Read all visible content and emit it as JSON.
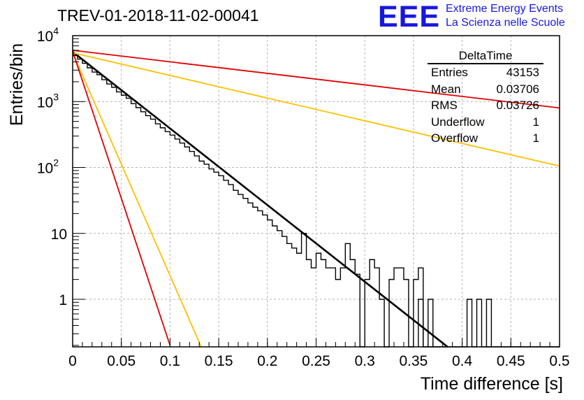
{
  "title": "TREV-01-2018-11-02-00041",
  "logo": {
    "mark": "EEE",
    "line1": "Extreme Energy Events",
    "line2": "La Scienza nelle Scuole"
  },
  "stats_box": {
    "title": "DeltaTime",
    "rows": [
      {
        "label": "Entries",
        "value": "43153"
      },
      {
        "label": "Mean",
        "value": "0.03706"
      },
      {
        "label": "RMS",
        "value": "0.03726"
      },
      {
        "label": "Underflow",
        "value": "1"
      },
      {
        "label": "Overflow",
        "value": "1"
      }
    ]
  },
  "colors": {
    "histogram": "#000000",
    "fit": "#000000",
    "red": "#e00000",
    "orange": "#ffc000",
    "grid": "#b4b4b4"
  },
  "chart_data": {
    "type": "line",
    "xlabel": "Time difference [s]",
    "ylabel": "Entries/bin",
    "xlim": [
      0,
      0.5
    ],
    "ylim": [
      0.18,
      10000
    ],
    "ylog": true,
    "grid": true,
    "legend": "top-right",
    "xticks": [
      "0",
      "0.05",
      "0.1",
      "0.15",
      "0.2",
      "0.25",
      "0.3",
      "0.35",
      "0.4",
      "0.45",
      "0.5"
    ],
    "yticks": [
      {
        "value": 1,
        "label": "1"
      },
      {
        "value": 10,
        "label": "10"
      },
      {
        "value": 100,
        "label": "10",
        "exp": "2"
      },
      {
        "value": 1000,
        "label": "10",
        "exp": "3"
      },
      {
        "value": 10000,
        "label": "10",
        "exp": "4"
      }
    ],
    "histogram": {
      "bin_width": 0.005,
      "x0": 0,
      "counts": [
        5000,
        4400,
        3800,
        3250,
        2800,
        2550,
        2150,
        1850,
        1650,
        1400,
        1250,
        1120,
        930,
        810,
        700,
        610,
        540,
        460,
        400,
        350,
        310,
        270,
        235,
        205,
        175,
        150,
        125,
        112,
        95,
        85,
        75,
        64,
        55,
        45,
        39,
        34,
        29,
        25,
        22,
        19,
        16,
        13,
        11,
        9,
        7,
        6,
        5,
        10,
        4,
        3,
        5,
        4,
        3,
        3,
        2,
        3,
        7,
        4,
        2.4,
        0.01,
        2,
        4,
        3,
        1,
        0.01,
        2,
        3,
        3,
        2,
        0.01,
        2,
        3,
        0.01,
        0.01,
        0.01,
        0.01,
        0.01,
        0.01,
        0.01,
        0.01,
        0.01,
        1,
        0.01,
        1,
        0.01,
        0.01,
        0.01,
        0.01,
        0.01,
        0.01,
        0.01,
        0.01,
        0.01,
        0.01,
        0.01,
        0.01,
        0.01,
        0.01,
        0.01,
        0.01
      ],
      "extra_bins": [
        {
          "x": 0.355,
          "value": 1
        },
        {
          "x": 0.365,
          "value": 1
        },
        {
          "x": 0.425,
          "value": 1
        }
      ]
    },
    "series": [
      {
        "color": "black",
        "x": [
          0,
          0.385
        ],
        "y": [
          5700,
          0.18
        ]
      },
      {
        "color": "red",
        "x": [
          0,
          0.5
        ],
        "y": [
          6000,
          800
        ]
      },
      {
        "color": "orange",
        "x": [
          0,
          0.5
        ],
        "y": [
          5500,
          105
        ]
      },
      {
        "color": "orange",
        "x": [
          0,
          0.132
        ],
        "y": [
          5500,
          0.18
        ]
      },
      {
        "color": "red",
        "x": [
          0,
          0.1
        ],
        "y": [
          5800,
          0.2
        ]
      }
    ]
  }
}
